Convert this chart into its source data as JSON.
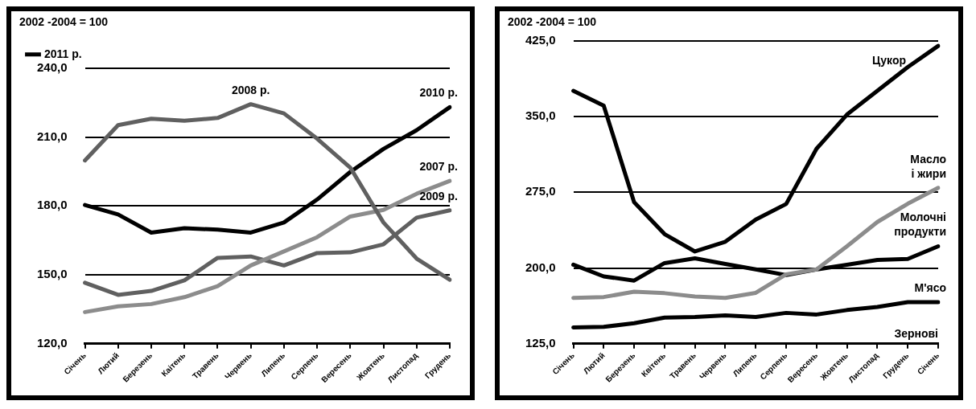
{
  "chart_data": [
    {
      "type": "line",
      "title": "2002 -2004 = 100",
      "categories": [
        "Січень",
        "Лютий",
        "Березень",
        "Каітень",
        "Травень",
        "Червень",
        "Липень",
        "Серпень",
        "Вересень",
        "Жовтень",
        "Листопад",
        "Грудень"
      ],
      "series": [
        {
          "name": "2011 р.",
          "color": "#000000",
          "values": [
            null,
            null,
            null,
            null,
            null,
            null,
            null,
            null,
            null,
            null,
            null,
            null
          ]
        },
        {
          "name": "2008 р.",
          "color": "#606060",
          "values": [
            199.8,
            215.2,
            218,
            217.1,
            218.3,
            224.3,
            220.3,
            209.3,
            196.7,
            172.8,
            157.1,
            147.9
          ]
        },
        {
          "name": "2010 р.",
          "color": "#000000",
          "values": [
            180.4,
            176.3,
            168.4,
            170.3,
            169.7,
            168.4,
            172.8,
            182.8,
            194.8,
            204.8,
            213,
            223
          ]
        },
        {
          "name": "2007 р.",
          "color": "#8c8c8c",
          "values": [
            133.8,
            136.3,
            137.3,
            140.3,
            145.1,
            154.1,
            160.2,
            166.4,
            175.4,
            178.3,
            185.3,
            190.9
          ]
        },
        {
          "name": "2009 р.",
          "color": "#606060",
          "values": [
            146.6,
            141.3,
            143,
            147.6,
            157.4,
            158,
            154.1,
            159.5,
            159.8,
            163.3,
            174.9,
            178.1
          ]
        }
      ],
      "ylim": [
        120,
        240
      ],
      "yticks": [
        {
          "value": 120,
          "label": "120,0"
        },
        {
          "value": 150,
          "label": "150,0"
        },
        {
          "value": 180,
          "label": "180,0"
        },
        {
          "value": 210,
          "label": "210,0"
        },
        {
          "value": 240,
          "label": "240,0"
        }
      ],
      "grid": "y",
      "legend": "top left"
    },
    {
      "type": "line",
      "title": "2002 -2004 = 100",
      "categories": [
        "Січень",
        "Лютий",
        "Березень",
        "Квітень",
        "Травень",
        "Червень",
        "Липень",
        "Серпень",
        "Вересень",
        "Жовтень",
        "Листопад",
        "Грудень",
        "Січень"
      ],
      "series": [
        {
          "name": "Цукор",
          "color": "#000000",
          "values": [
            375.5,
            360.8,
            265.2,
            233.6,
            216.4,
            226.1,
            248,
            263.4,
            318.2,
            352,
            375.5,
            399,
            420
          ]
        },
        {
          "name": "Масло і жири",
          "color": "#8c8c8c",
          "values": [
            170.4,
            171.3,
            176.6,
            175.1,
            171.9,
            170.4,
            175.4,
            193.8,
            198.6,
            221.5,
            245.6,
            263.7,
            279.4
          ]
        },
        {
          "name": "Молочні продукти",
          "color": "#000000",
          "values": [
            203.3,
            191.7,
            187.6,
            204.9,
            209.6,
            204,
            198.6,
            193,
            198.6,
            203.3,
            208,
            209,
            221.5
          ]
        },
        {
          "name": "М'ясо",
          "color": "#000000",
          "values": [
            141.2,
            141.8,
            145.3,
            150.9,
            151.5,
            153.1,
            151.5,
            155.6,
            154,
            158.4,
            161.5,
            166.2,
            166.2
          ]
        }
      ],
      "annotations": [
        "Зернові"
      ],
      "ylim": [
        125,
        425
      ],
      "yticks": [
        {
          "value": 125,
          "label": "125,0"
        },
        {
          "value": 200,
          "label": "200,0"
        },
        {
          "value": 275,
          "label": "275,0"
        },
        {
          "value": 350,
          "label": "350,0"
        },
        {
          "value": 425,
          "label": "425,0"
        }
      ],
      "grid": "y"
    }
  ]
}
